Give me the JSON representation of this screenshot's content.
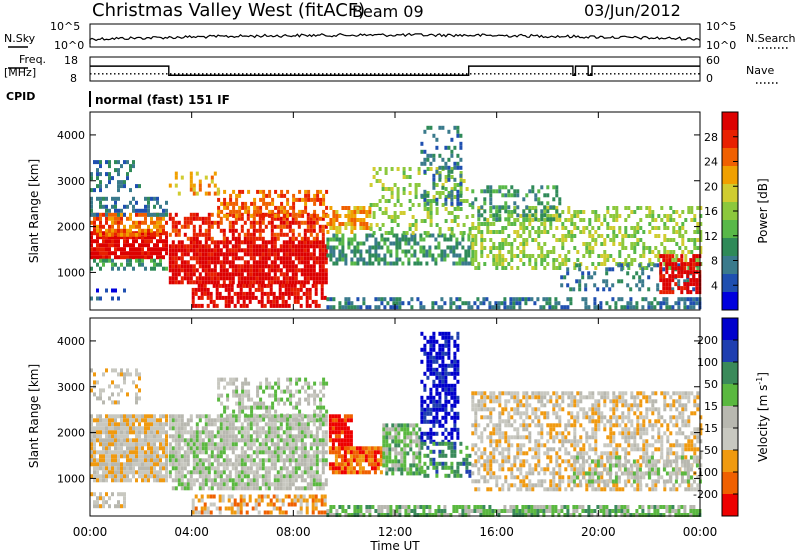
{
  "header": {
    "station": "Christmas Valley West (fitACF)",
    "beam": "Beam 09",
    "date": "03/Jun/2012"
  },
  "status_panel": {
    "nsky_label": "N.Sky",
    "nsearch_label": "N.Search",
    "freq_label_line1": "Freq.",
    "freq_label_line2": "[MHz]",
    "nave_label": "Nave",
    "cpid_label": "CPID",
    "cpid_value": "normal (fast) 151 IF",
    "noise_ticks_left": [
      "10^5",
      "10^0"
    ],
    "noise_ticks_right": [
      "10^5",
      "10^0"
    ],
    "freq_ticks": [
      "18",
      "8"
    ],
    "nave_ticks": [
      "60",
      "0"
    ],
    "freq_steps": [
      {
        "t": 0.0,
        "v": 14.2
      },
      {
        "t": 3.1,
        "v": 10.4
      },
      {
        "t": 14.9,
        "v": 14.2
      },
      {
        "t": 19.0,
        "v": 10.4
      },
      {
        "t": 19.1,
        "v": 14.2
      },
      {
        "t": 19.6,
        "v": 10.4
      },
      {
        "t": 19.75,
        "v": 14.2
      },
      {
        "t": 24.0,
        "v": 14.2
      }
    ],
    "nave_level": 18,
    "colors": {
      "trace": "#000000"
    }
  },
  "time_axis": {
    "label": "Time UT",
    "ticks": [
      "00:00",
      "04:00",
      "08:00",
      "12:00",
      "16:00",
      "20:00",
      "00:00"
    ]
  },
  "chart_data": [
    {
      "type": "heatmap",
      "name": "Power",
      "ylabel": "Slant Range [km]",
      "yticks": [
        "4000",
        "3000",
        "2000",
        "1000"
      ],
      "ylim": [
        180,
        4500
      ],
      "xlim": [
        0,
        24
      ],
      "colorbar": {
        "title": "Power [dB]",
        "ticks": [
          "28",
          "24",
          "20",
          "16",
          "12",
          "8",
          "4"
        ],
        "colors": [
          "#0000dd",
          "#1f4fb0",
          "#3a7a8c",
          "#2f8a58",
          "#58b848",
          "#8cc83c",
          "#d0cc30",
          "#f0a000",
          "#f06000",
          "#e82000",
          "#dd0000"
        ]
      },
      "regions": [
        {
          "t0": 0.0,
          "t1": 3.0,
          "r0": 1300,
          "r1": 1900,
          "c": 10,
          "d": 0.9
        },
        {
          "t0": 0.0,
          "t1": 3.0,
          "r0": 1800,
          "r1": 2300,
          "c": 8,
          "d": 0.7
        },
        {
          "t0": 0.0,
          "t1": 3.0,
          "r0": 2300,
          "r1": 2650,
          "c": 2,
          "d": 0.5
        },
        {
          "t0": 0.0,
          "t1": 3.0,
          "r0": 1050,
          "r1": 1300,
          "c": 3,
          "d": 0.45
        },
        {
          "t0": 0.0,
          "t1": 2.0,
          "r0": 2800,
          "r1": 3450,
          "c": 2,
          "d": 0.35
        },
        {
          "t0": 0.0,
          "t1": 1.5,
          "r0": 400,
          "r1": 650,
          "c": 1,
          "d": 0.3
        },
        {
          "t0": 3.1,
          "t1": 9.3,
          "r0": 750,
          "r1": 1700,
          "c": 10,
          "d": 0.85
        },
        {
          "t0": 3.1,
          "t1": 9.3,
          "r0": 1700,
          "r1": 2300,
          "c": 9,
          "d": 0.6
        },
        {
          "t0": 5.0,
          "t1": 9.3,
          "r0": 2200,
          "r1": 2800,
          "c": 8,
          "d": 0.55
        },
        {
          "t0": 4.0,
          "t1": 9.3,
          "r0": 250,
          "r1": 750,
          "c": 10,
          "d": 0.65
        },
        {
          "t0": 3.1,
          "t1": 5.0,
          "r0": 2700,
          "r1": 3200,
          "c": 7,
          "d": 0.3
        },
        {
          "t0": 9.3,
          "t1": 15.0,
          "r0": 1200,
          "r1": 1850,
          "c": 3,
          "d": 0.55
        },
        {
          "t0": 9.3,
          "t1": 11.0,
          "r0": 1850,
          "r1": 2450,
          "c": 7,
          "d": 0.6
        },
        {
          "t0": 11.0,
          "t1": 15.0,
          "r0": 1850,
          "r1": 3300,
          "c": 5,
          "d": 0.3
        },
        {
          "t0": 13.0,
          "t1": 14.6,
          "r0": 2500,
          "r1": 4200,
          "c": 2,
          "d": 0.3
        },
        {
          "t0": 9.3,
          "t1": 24.0,
          "r0": 200,
          "r1": 460,
          "c": 2,
          "d": 0.5
        },
        {
          "t0": 15.0,
          "t1": 24.0,
          "r0": 1100,
          "r1": 2450,
          "c": 5,
          "d": 0.45
        },
        {
          "t0": 15.0,
          "t1": 18.5,
          "r0": 2200,
          "r1": 2900,
          "c": 3,
          "d": 0.35
        },
        {
          "t0": 18.5,
          "t1": 24.0,
          "r0": 600,
          "r1": 1200,
          "c": 2,
          "d": 0.25
        },
        {
          "t0": 22.4,
          "t1": 24.0,
          "r0": 600,
          "r1": 1400,
          "c": 10,
          "d": 0.7
        }
      ]
    },
    {
      "type": "heatmap",
      "name": "Velocity",
      "ylabel": "Slant Range [km]",
      "yticks": [
        "4000",
        "3000",
        "2000",
        "1000"
      ],
      "ylim": [
        180,
        4500
      ],
      "xlim": [
        0,
        24
      ],
      "colorbar": {
        "title": "Velocity [m s^-1]",
        "ticks": [
          "200",
          "100",
          "50",
          "15",
          "-15",
          "-50",
          "-100",
          "-200"
        ],
        "colors": [
          "#ee0000",
          "#f06000",
          "#f09a10",
          "#c8c8c0",
          "#b8b8b0",
          "#5ab840",
          "#3a8a5a",
          "#1f3fb0",
          "#0000cc"
        ]
      },
      "regions": [
        {
          "t0": 0.0,
          "t1": 3.0,
          "r0": 1000,
          "r1": 2400,
          "c": 3,
          "d": 0.9
        },
        {
          "t0": 0.0,
          "t1": 2.0,
          "r0": 2700,
          "r1": 3400,
          "c": 3,
          "d": 0.35
        },
        {
          "t0": 0.0,
          "t1": 1.5,
          "r0": 400,
          "r1": 700,
          "c": 3,
          "d": 0.5
        },
        {
          "t0": 3.1,
          "t1": 9.3,
          "r0": 750,
          "r1": 2400,
          "c": 4,
          "d": 0.8
        },
        {
          "t0": 5.0,
          "t1": 9.3,
          "r0": 2300,
          "r1": 3200,
          "c": 4,
          "d": 0.5
        },
        {
          "t0": 4.0,
          "t1": 9.3,
          "r0": 250,
          "r1": 650,
          "c": 2,
          "d": 0.55
        },
        {
          "t0": 9.4,
          "t1": 10.3,
          "r0": 1700,
          "r1": 2400,
          "c": 0,
          "d": 0.9
        },
        {
          "t0": 9.4,
          "t1": 11.5,
          "r0": 1100,
          "r1": 1700,
          "c": 1,
          "d": 0.85
        },
        {
          "t0": 11.5,
          "t1": 13.0,
          "r0": 1100,
          "r1": 2200,
          "c": 5,
          "d": 0.8
        },
        {
          "t0": 13.0,
          "t1": 14.5,
          "r0": 1800,
          "r1": 4200,
          "c": 8,
          "d": 0.6
        },
        {
          "t0": 13.0,
          "t1": 15.0,
          "r0": 1100,
          "r1": 1800,
          "c": 6,
          "d": 0.5
        },
        {
          "t0": 9.3,
          "t1": 24.0,
          "r0": 200,
          "r1": 420,
          "c": 5,
          "d": 0.75
        },
        {
          "t0": 15.0,
          "t1": 24.0,
          "r0": 800,
          "r1": 2900,
          "c": 3,
          "d": 0.55
        },
        {
          "t0": 19.0,
          "t1": 24.0,
          "r0": 900,
          "r1": 1500,
          "c": 4,
          "d": 0.5
        }
      ]
    }
  ]
}
